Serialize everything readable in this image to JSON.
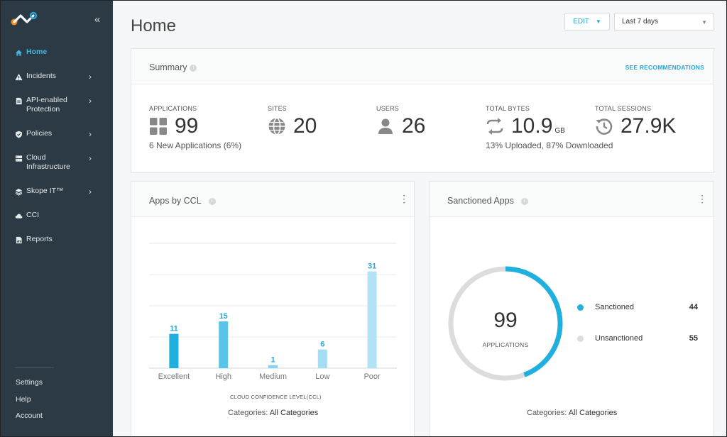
{
  "sidebar": {
    "collapse_glyph": "«",
    "items": [
      {
        "label": "Home",
        "icon": "home-icon",
        "active": true,
        "has_submenu": false
      },
      {
        "label": "Incidents",
        "icon": "warning-icon",
        "active": false,
        "has_submenu": true
      },
      {
        "label": "API-enabled Protection",
        "icon": "document-icon",
        "active": false,
        "has_submenu": true
      },
      {
        "label": "Policies",
        "icon": "shield-icon",
        "active": false,
        "has_submenu": true
      },
      {
        "label": "Cloud Infrastructure",
        "icon": "server-icon",
        "active": false,
        "has_submenu": true
      },
      {
        "label": "Skope IT™",
        "icon": "layers-icon",
        "active": false,
        "has_submenu": true
      },
      {
        "label": "CCI",
        "icon": "cloud-icon",
        "active": false,
        "has_submenu": false
      },
      {
        "label": "Reports",
        "icon": "report-icon",
        "active": false,
        "has_submenu": false
      }
    ],
    "bottom": [
      "Settings",
      "Help",
      "Account"
    ]
  },
  "header": {
    "title": "Home",
    "edit_label": "EDIT",
    "date_range": "Last 7 days"
  },
  "summary": {
    "title": "Summary",
    "link": "SEE RECOMMENDATIONS",
    "metrics": [
      {
        "label": "APPLICATIONS",
        "value": "99",
        "unit": "",
        "sub": "6 New Applications (6%)",
        "icon": "grid-icon"
      },
      {
        "label": "SITES",
        "value": "20",
        "unit": "",
        "sub": "",
        "icon": "globe-icon"
      },
      {
        "label": "USERS",
        "value": "26",
        "unit": "",
        "sub": "",
        "icon": "user-icon"
      },
      {
        "label": "TOTAL BYTES",
        "value": "10.9",
        "unit": "GB",
        "sub": "13% Uploaded, 87% Downloaded",
        "icon": "transfer-icon"
      },
      {
        "label": "TOTAL SESSIONS",
        "value": "27.9K",
        "unit": "",
        "sub": "",
        "icon": "history-icon"
      }
    ]
  },
  "ccl_card": {
    "title": "Apps by CCL",
    "categories_label": "Categories:",
    "categories_value": "All Categories"
  },
  "sanctioned_card": {
    "title": "Sanctioned Apps",
    "center_value": "99",
    "center_label": "APPLICATIONS",
    "categories_label": "Categories:",
    "categories_value": "All Categories",
    "legend": [
      {
        "name": "Sanctioned",
        "count": 44,
        "color": "#1fb0e0"
      },
      {
        "name": "Unsanctioned",
        "count": 55,
        "color": "#dcdcdc"
      }
    ]
  },
  "chart_data": [
    {
      "type": "bar",
      "title": "Apps by CCL",
      "xlabel": "CLOUD CONFIDENCE LEVEL(CCL)",
      "ylabel": "",
      "categories": [
        "Excellent",
        "High",
        "Medium",
        "Low",
        "Poor"
      ],
      "values": [
        11,
        15,
        1,
        6,
        31
      ],
      "colors": [
        "#1fb0e0",
        "#5cc3e8",
        "#8ad3ef",
        "#a6ddf2",
        "#b3e2f4"
      ],
      "ylim": [
        0,
        40
      ],
      "grid": true,
      "legend": "none"
    },
    {
      "type": "pie",
      "title": "Sanctioned Apps",
      "categories": [
        "Sanctioned",
        "Unsanctioned"
      ],
      "values": [
        44,
        55
      ],
      "colors": [
        "#1fb0e0",
        "#dcdcdc"
      ],
      "legend": "right"
    }
  ]
}
